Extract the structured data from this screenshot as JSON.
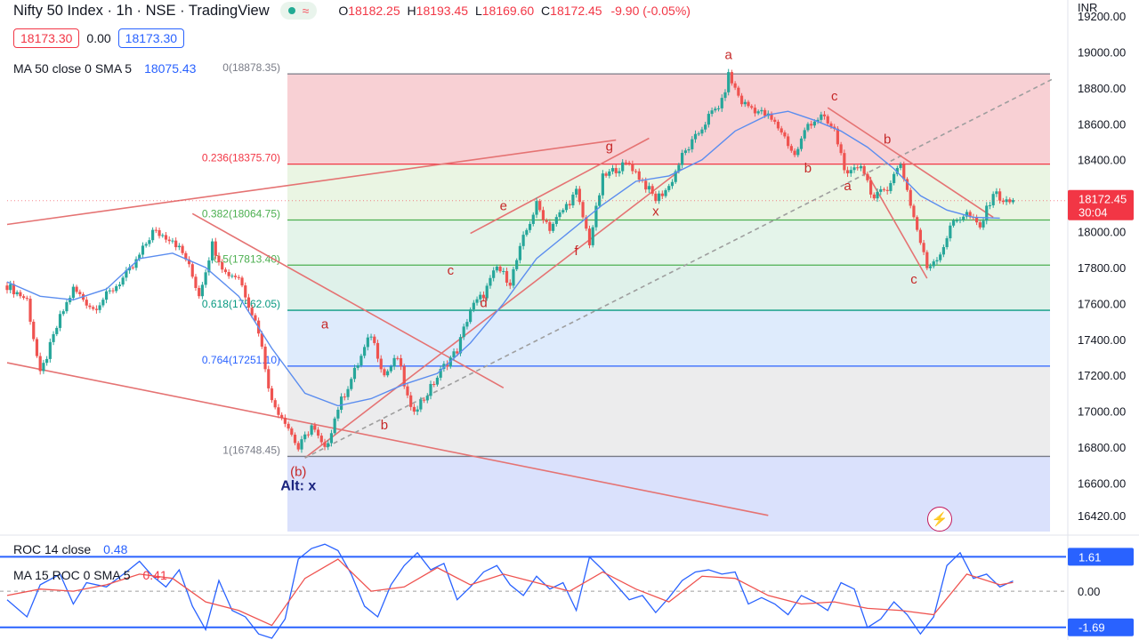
{
  "header": {
    "title": "Nifty 50 Index · 1h · NSE · TradingView",
    "wave_icon": "≈",
    "ohlc": [
      {
        "key": "O",
        "value": "18182.25"
      },
      {
        "key": "H",
        "value": "18193.45"
      },
      {
        "key": "L",
        "value": "18169.60"
      },
      {
        "key": "C",
        "value": "18172.45"
      }
    ],
    "change": "-9.90 (-0.05%)",
    "sell_price": "18173.30",
    "spread": "0.00",
    "buy_price": "18173.30",
    "currency": "INR"
  },
  "ma_legend": {
    "label": "MA 50 close 0 SMA 5",
    "value": "18075.43"
  },
  "roc_legend": {
    "label": "ROC 14 close",
    "value": "0.48"
  },
  "roc_ma_legend": {
    "label": "MA 15 ROC 0 SMA 5",
    "value": "0.41"
  },
  "icons": {
    "bolt": "lightning-icon",
    "status": "market-status-dot-icon"
  },
  "colors": {
    "up": "#26a69a",
    "down": "#ef5350",
    "ma": "#2962ff",
    "fib_red": "#f23645",
    "fib_green": "#4caf50",
    "fib_blue": "#2962ff",
    "trend": "#e57373"
  },
  "chart_data": [
    {
      "type": "candlestick",
      "title": "Nifty 50 Index · 1h · NSE",
      "ylim": [
        16330,
        19250
      ],
      "y_ticks": [
        19200,
        19000,
        18800,
        18600,
        18400,
        18200,
        18000,
        17800,
        17600,
        17400,
        17200,
        17000,
        16800,
        16600,
        16420
      ],
      "y_tick_labels": [
        "19200.00",
        "19000.00",
        "18800.00",
        "18600.00",
        "18400.00",
        "18200.00",
        "18000.00",
        "17800.00",
        "17600.00",
        "17400.00",
        "17200.00",
        "17000.00",
        "16800.00",
        "16600.00",
        "16420.00"
      ],
      "last_price": {
        "value": 18172.45,
        "label": "18172.45",
        "countdown": "30:04"
      },
      "price_path": [
        [
          0,
          17700
        ],
        [
          3,
          17620
        ],
        [
          5,
          17200
        ],
        [
          8,
          17520
        ],
        [
          10,
          17680
        ],
        [
          13,
          17570
        ],
        [
          16,
          17680
        ],
        [
          19,
          17800
        ],
        [
          22,
          18000
        ],
        [
          25,
          17960
        ],
        [
          27,
          17850
        ],
        [
          29,
          17650
        ],
        [
          31,
          17930
        ],
        [
          33,
          17770
        ],
        [
          35,
          17750
        ],
        [
          38,
          17450
        ],
        [
          40,
          17050
        ],
        [
          42,
          16950
        ],
        [
          44,
          16790
        ],
        [
          46,
          16920
        ],
        [
          48,
          16780
        ],
        [
          50,
          17020
        ],
        [
          52,
          17180
        ],
        [
          55,
          17430
        ],
        [
          57,
          17200
        ],
        [
          59,
          17300
        ],
        [
          61,
          17000
        ],
        [
          63,
          17070
        ],
        [
          66,
          17250
        ],
        [
          68,
          17340
        ],
        [
          70,
          17570
        ],
        [
          72,
          17650
        ],
        [
          74,
          17800
        ],
        [
          76,
          17720
        ],
        [
          78,
          17960
        ],
        [
          80,
          18150
        ],
        [
          82,
          18020
        ],
        [
          84,
          18120
        ],
        [
          86,
          18220
        ],
        [
          88,
          17940
        ],
        [
          90,
          18300
        ],
        [
          92,
          18350
        ],
        [
          94,
          18380
        ],
        [
          96,
          18280
        ],
        [
          98,
          18180
        ],
        [
          100,
          18250
        ],
        [
          102,
          18420
        ],
        [
          104,
          18520
        ],
        [
          106,
          18640
        ],
        [
          108,
          18720
        ],
        [
          109,
          18870
        ],
        [
          111,
          18720
        ],
        [
          113,
          18680
        ],
        [
          115,
          18640
        ],
        [
          117,
          18560
        ],
        [
          119,
          18420
        ],
        [
          121,
          18600
        ],
        [
          123,
          18640
        ],
        [
          125,
          18560
        ],
        [
          127,
          18300
        ],
        [
          129,
          18380
        ],
        [
          131,
          18180
        ],
        [
          133,
          18250
        ],
        [
          135,
          18380
        ],
        [
          137,
          18080
        ],
        [
          139,
          17800
        ],
        [
          141,
          17880
        ],
        [
          143,
          18060
        ],
        [
          145,
          18100
        ],
        [
          147,
          18020
        ],
        [
          149,
          18220
        ],
        [
          151,
          18160
        ],
        [
          152,
          18172
        ]
      ],
      "moving_average": {
        "name": "MA 50",
        "path": [
          [
            0,
            17720
          ],
          [
            5,
            17640
          ],
          [
            10,
            17620
          ],
          [
            15,
            17680
          ],
          [
            20,
            17850
          ],
          [
            25,
            17880
          ],
          [
            30,
            17800
          ],
          [
            35,
            17640
          ],
          [
            40,
            17350
          ],
          [
            45,
            17100
          ],
          [
            50,
            17030
          ],
          [
            55,
            17070
          ],
          [
            60,
            17150
          ],
          [
            65,
            17210
          ],
          [
            70,
            17380
          ],
          [
            75,
            17600
          ],
          [
            80,
            17850
          ],
          [
            85,
            18000
          ],
          [
            90,
            18150
          ],
          [
            95,
            18280
          ],
          [
            100,
            18310
          ],
          [
            105,
            18400
          ],
          [
            110,
            18560
          ],
          [
            115,
            18650
          ],
          [
            118,
            18670
          ],
          [
            122,
            18620
          ],
          [
            126,
            18560
          ],
          [
            130,
            18470
          ],
          [
            134,
            18350
          ],
          [
            138,
            18200
          ],
          [
            142,
            18120
          ],
          [
            146,
            18080
          ],
          [
            150,
            18075
          ]
        ]
      },
      "fibonacci": {
        "levels": [
          {
            "ratio": "0",
            "price": 18878.35,
            "label": "0(18878.35)"
          },
          {
            "ratio": "0.236",
            "price": 18375.7,
            "label": "0.236(18375.70)"
          },
          {
            "ratio": "0.382",
            "price": 18064.75,
            "label": "0.382(18064.75)"
          },
          {
            "ratio": "0.5",
            "price": 17813.4,
            "label": "0.5(17813.40)"
          },
          {
            "ratio": "0.618",
            "price": 17562.05,
            "label": "0.618(17562.05)"
          },
          {
            "ratio": "0.764",
            "price": 17251.1,
            "label": "0.764(17251.10)"
          },
          {
            "ratio": "1",
            "price": 16748.45,
            "label": "1(16748.45)"
          }
        ]
      },
      "wave_labels": [
        {
          "text": "a",
          "x": 109,
          "y": 18960
        },
        {
          "text": "(b)",
          "x": 44,
          "y": 16640
        },
        {
          "text": "Alt: x",
          "x": 44,
          "y": 16560
        },
        {
          "text": "a",
          "x": 48,
          "y": 17460
        },
        {
          "text": "b",
          "x": 57,
          "y": 16900
        },
        {
          "text": "c",
          "x": 67,
          "y": 17760
        },
        {
          "text": "d",
          "x": 72,
          "y": 17580
        },
        {
          "text": "e",
          "x": 75,
          "y": 18120
        },
        {
          "text": "f",
          "x": 86,
          "y": 17870
        },
        {
          "text": "g",
          "x": 91,
          "y": 18450
        },
        {
          "text": "x",
          "x": 98,
          "y": 18090
        },
        {
          "text": "c",
          "x": 125,
          "y": 18730
        },
        {
          "text": "b",
          "x": 121,
          "y": 18330
        },
        {
          "text": "b",
          "x": 133,
          "y": 18490
        },
        {
          "text": "a",
          "x": 127,
          "y": 18230
        },
        {
          "text": "c",
          "x": 137,
          "y": 17710
        }
      ]
    },
    {
      "type": "line",
      "title": "ROC 14 close",
      "series": [
        {
          "name": "ROC 14 close",
          "value": 0.48
        },
        {
          "name": "MA 15 ROC 0 SMA 5",
          "value": 0.41
        }
      ],
      "ylim": [
        -2.2,
        2.5
      ],
      "y_tick_labels": [
        "0.00"
      ],
      "bands": [
        {
          "value": 1.61,
          "label": "1.61"
        },
        {
          "value": -1.69,
          "label": "-1.69"
        }
      ],
      "roc_path": [
        [
          0,
          -0.4
        ],
        [
          3,
          -1.2
        ],
        [
          5,
          0.3
        ],
        [
          8,
          0.8
        ],
        [
          10,
          -0.6
        ],
        [
          12,
          0.4
        ],
        [
          15,
          0.2
        ],
        [
          18,
          0.9
        ],
        [
          20,
          1.4
        ],
        [
          22,
          0.7
        ],
        [
          24,
          0.2
        ],
        [
          26,
          1.0
        ],
        [
          28,
          -0.7
        ],
        [
          30,
          -1.8
        ],
        [
          32,
          0.5
        ],
        [
          34,
          -0.9
        ],
        [
          36,
          -1.2
        ],
        [
          38,
          -2.0
        ],
        [
          40,
          -2.2
        ],
        [
          42,
          -1.3
        ],
        [
          44,
          1.5
        ],
        [
          46,
          2.0
        ],
        [
          48,
          2.2
        ],
        [
          50,
          1.9
        ],
        [
          52,
          0.8
        ],
        [
          54,
          -0.7
        ],
        [
          56,
          -1.2
        ],
        [
          58,
          0.3
        ],
        [
          60,
          1.2
        ],
        [
          62,
          1.8
        ],
        [
          64,
          1.0
        ],
        [
          66,
          1.3
        ],
        [
          68,
          -0.4
        ],
        [
          70,
          0.2
        ],
        [
          72,
          0.9
        ],
        [
          74,
          1.2
        ],
        [
          76,
          0.3
        ],
        [
          78,
          -0.2
        ],
        [
          80,
          0.7
        ],
        [
          82,
          0.1
        ],
        [
          84,
          0.4
        ],
        [
          86,
          -0.9
        ],
        [
          88,
          1.6
        ],
        [
          90,
          1.0
        ],
        [
          92,
          0.3
        ],
        [
          94,
          -0.4
        ],
        [
          96,
          -0.2
        ],
        [
          98,
          -1.0
        ],
        [
          100,
          -0.3
        ],
        [
          102,
          0.5
        ],
        [
          104,
          0.9
        ],
        [
          106,
          1.0
        ],
        [
          108,
          0.8
        ],
        [
          110,
          0.9
        ],
        [
          112,
          -0.6
        ],
        [
          114,
          -0.3
        ],
        [
          116,
          -0.6
        ],
        [
          118,
          -1.1
        ],
        [
          120,
          -0.2
        ],
        [
          122,
          -0.5
        ],
        [
          124,
          -0.9
        ],
        [
          126,
          0.4
        ],
        [
          128,
          0.1
        ],
        [
          130,
          -1.7
        ],
        [
          132,
          -1.3
        ],
        [
          134,
          -0.5
        ],
        [
          136,
          -1.1
        ],
        [
          138,
          -2.0
        ],
        [
          140,
          -1.2
        ],
        [
          142,
          1.2
        ],
        [
          144,
          1.8
        ],
        [
          146,
          0.6
        ],
        [
          148,
          0.8
        ],
        [
          150,
          0.2
        ],
        [
          152,
          0.48
        ]
      ],
      "ma_path": [
        [
          0,
          -0.2
        ],
        [
          5,
          0.1
        ],
        [
          10,
          0.0
        ],
        [
          15,
          0.3
        ],
        [
          20,
          0.8
        ],
        [
          25,
          0.6
        ],
        [
          30,
          -0.5
        ],
        [
          35,
          -0.9
        ],
        [
          40,
          -1.6
        ],
        [
          45,
          0.6
        ],
        [
          50,
          1.5
        ],
        [
          55,
          0.0
        ],
        [
          60,
          0.2
        ],
        [
          65,
          1.1
        ],
        [
          70,
          0.3
        ],
        [
          75,
          0.8
        ],
        [
          80,
          0.4
        ],
        [
          85,
          0.0
        ],
        [
          90,
          0.9
        ],
        [
          95,
          0.1
        ],
        [
          100,
          -0.5
        ],
        [
          105,
          0.7
        ],
        [
          110,
          0.6
        ],
        [
          115,
          -0.2
        ],
        [
          120,
          -0.6
        ],
        [
          125,
          -0.5
        ],
        [
          130,
          -0.8
        ],
        [
          135,
          -0.9
        ],
        [
          140,
          -1.1
        ],
        [
          145,
          0.8
        ],
        [
          150,
          0.3
        ],
        [
          152,
          0.41
        ]
      ]
    }
  ]
}
